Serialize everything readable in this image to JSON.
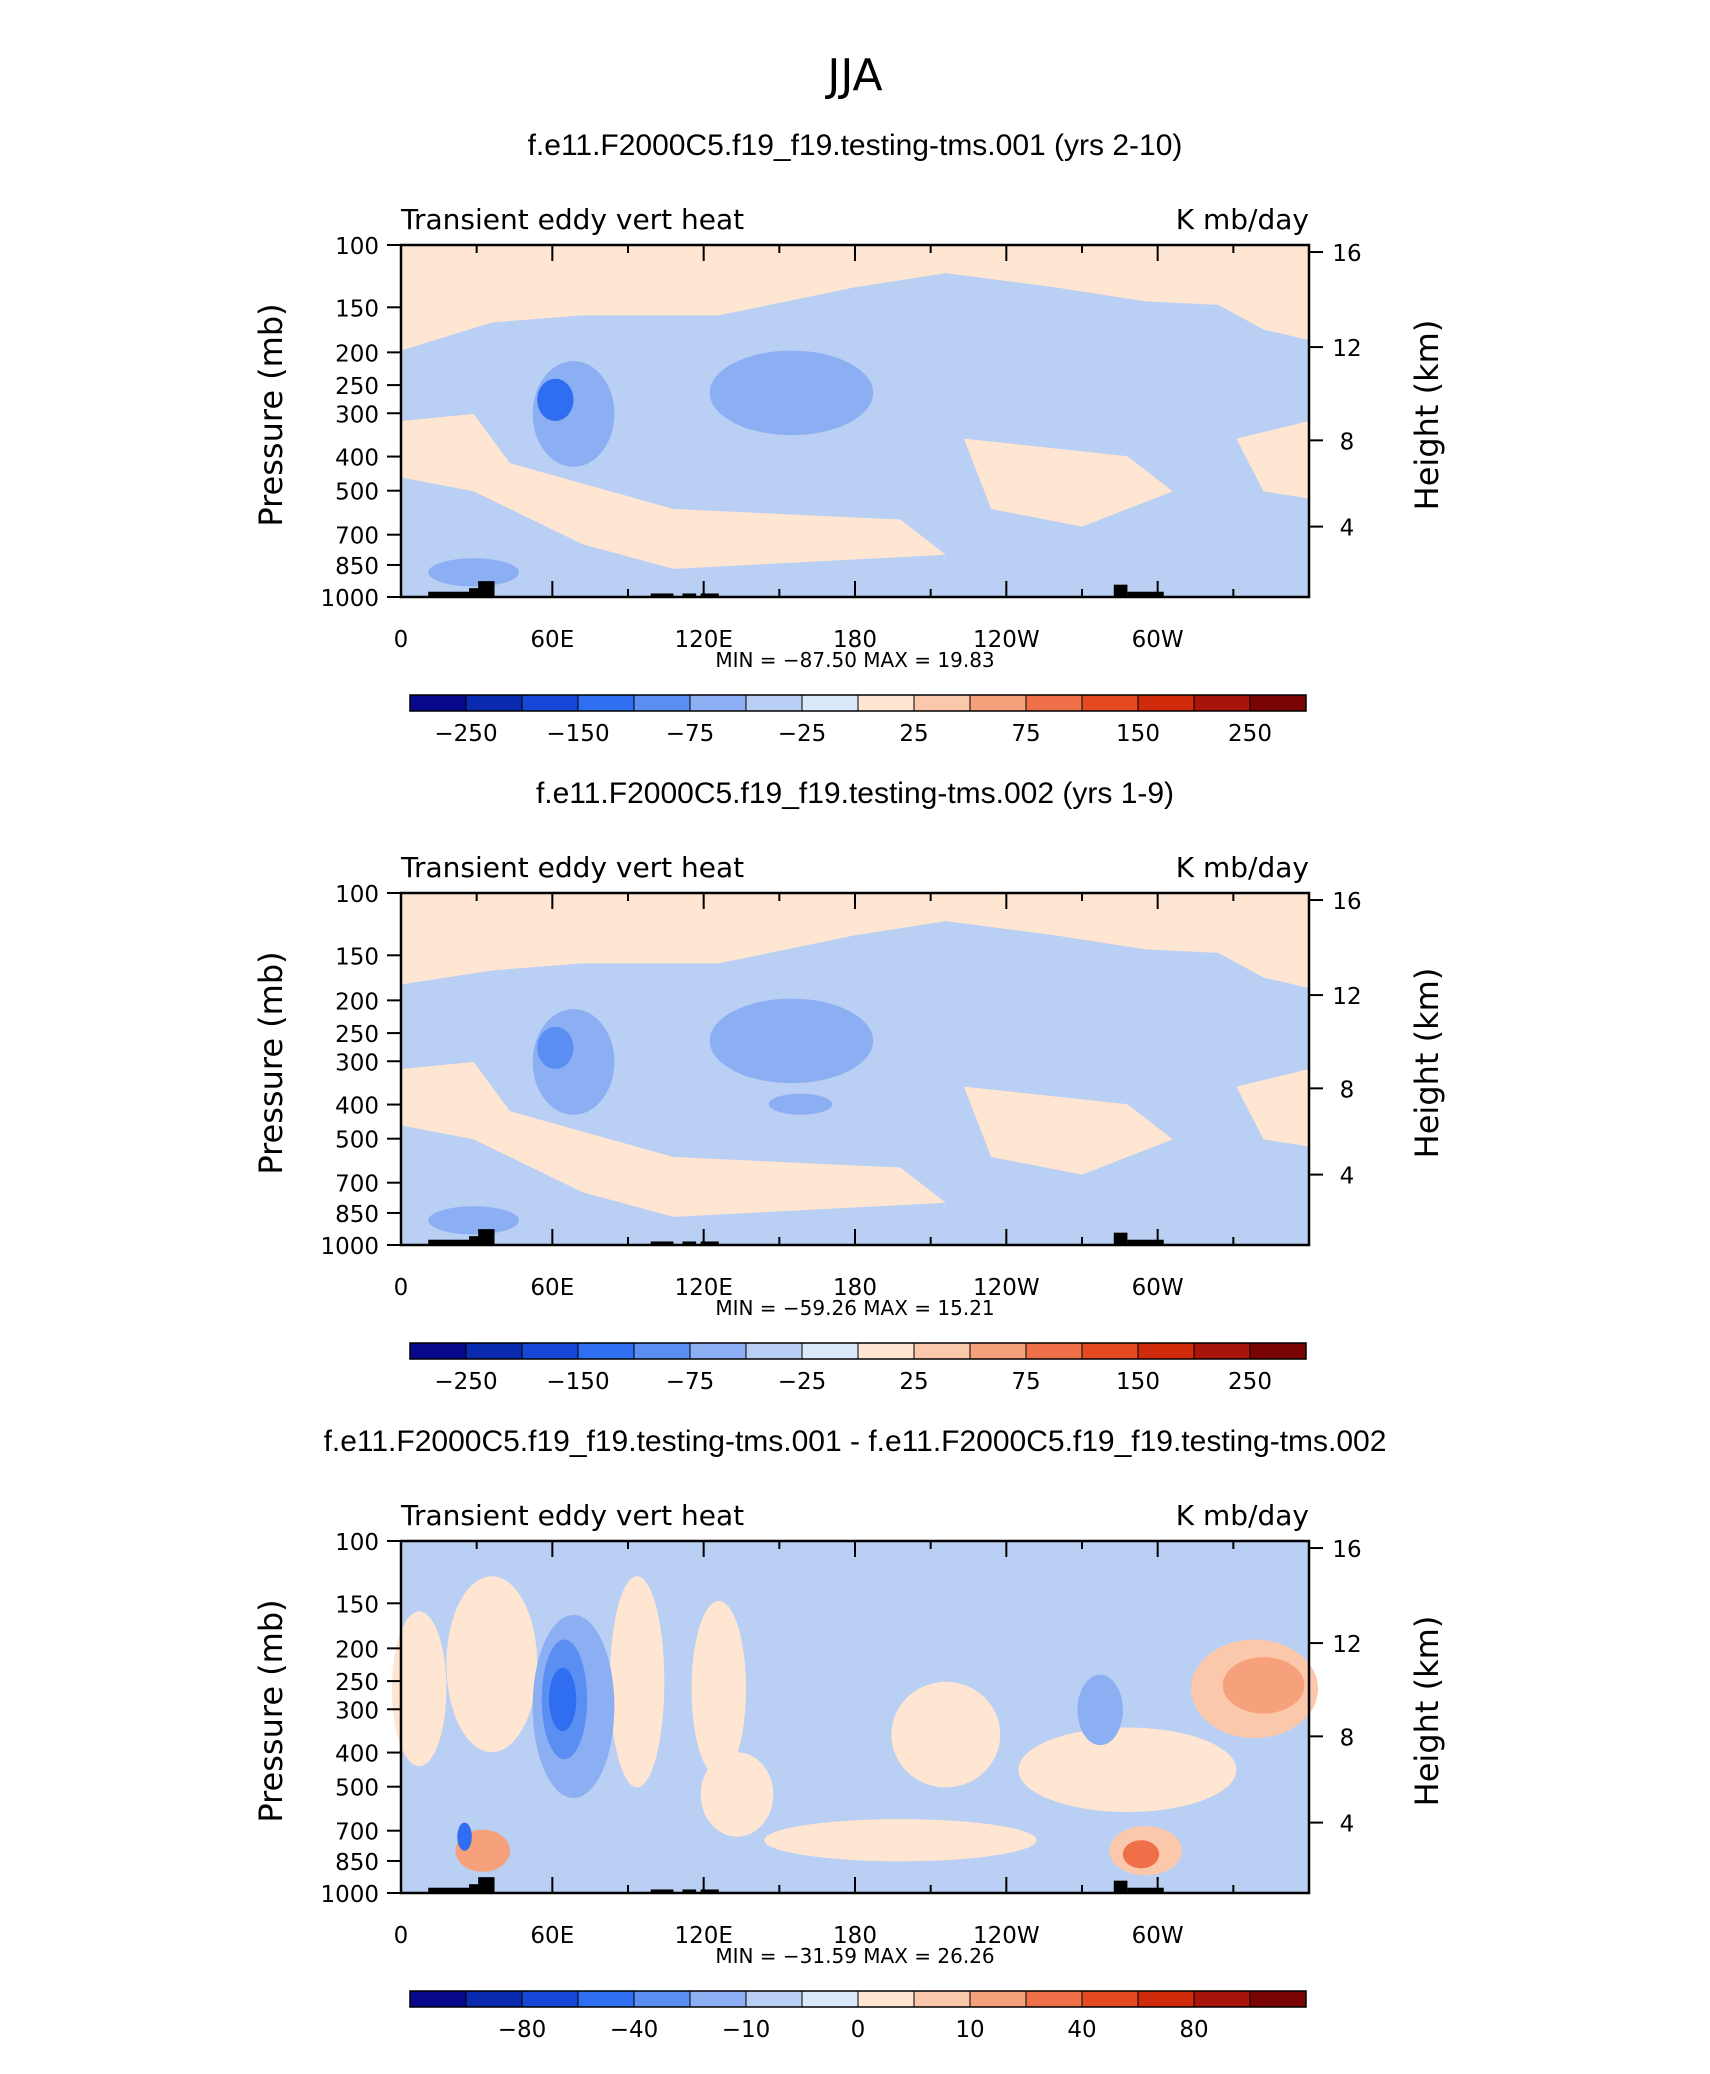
{
  "page_title": "JJA",
  "chart_data": [
    {
      "type": "heatmap",
      "title": "f.e11.F2000C5.f19_f19.testing-tms.001 (yrs 2-10)",
      "subtitle_left": "Transient eddy vert heat",
      "subtitle_right": "K mb/day",
      "ylabel": "Pressure (mb)",
      "ylabel_right": "Height (km)",
      "x_ticks": [
        "0",
        "60E",
        "120E",
        "180",
        "120W",
        "60W"
      ],
      "y_ticks": [
        "100",
        "150",
        "200",
        "250",
        "300",
        "400",
        "500",
        "700",
        "850",
        "1000"
      ],
      "y_ticks_right": [
        "16",
        "12",
        "8",
        "4"
      ],
      "stats": "MIN = −87.50   MAX =   19.83",
      "min": -87.5,
      "max": 19.83,
      "colorbar_labels": [
        "−250",
        "−150",
        "−75",
        "−25",
        "25",
        "75",
        "150",
        "250"
      ],
      "colorbar_levels": [
        -250,
        -200,
        -150,
        -100,
        -75,
        -50,
        -25,
        -10,
        10,
        25,
        50,
        75,
        100,
        150,
        200,
        250
      ],
      "colors": [
        "#08088c",
        "#0a2ab0",
        "#1648d8",
        "#2f6ef0",
        "#5b8ef2",
        "#8caef2",
        "#b9cff3",
        "#d9e8fb",
        "#ffe6d2",
        "#fcc8ac",
        "#f7a07c",
        "#ef7048",
        "#e44a20",
        "#cf2a0a",
        "#a8130a",
        "#7a0404"
      ]
    },
    {
      "type": "heatmap",
      "title": "f.e11.F2000C5.f19_f19.testing-tms.002 (yrs 1-9)",
      "subtitle_left": "Transient eddy vert heat",
      "subtitle_right": "K mb/day",
      "ylabel": "Pressure (mb)",
      "ylabel_right": "Height (km)",
      "x_ticks": [
        "0",
        "60E",
        "120E",
        "180",
        "120W",
        "60W"
      ],
      "y_ticks": [
        "100",
        "150",
        "200",
        "250",
        "300",
        "400",
        "500",
        "700",
        "850",
        "1000"
      ],
      "y_ticks_right": [
        "16",
        "12",
        "8",
        "4"
      ],
      "stats": "MIN = −59.26   MAX =   15.21",
      "min": -59.26,
      "max": 15.21,
      "colorbar_labels": [
        "−250",
        "−150",
        "−75",
        "−25",
        "25",
        "75",
        "150",
        "250"
      ],
      "colorbar_levels": [
        -250,
        -200,
        -150,
        -100,
        -75,
        -50,
        -25,
        -10,
        10,
        25,
        50,
        75,
        100,
        150,
        200,
        250
      ],
      "colors": [
        "#08088c",
        "#0a2ab0",
        "#1648d8",
        "#2f6ef0",
        "#5b8ef2",
        "#8caef2",
        "#b9cff3",
        "#d9e8fb",
        "#ffe6d2",
        "#fcc8ac",
        "#f7a07c",
        "#ef7048",
        "#e44a20",
        "#cf2a0a",
        "#a8130a",
        "#7a0404"
      ]
    },
    {
      "type": "heatmap",
      "title": "f.e11.F2000C5.f19_f19.testing-tms.001 - f.e11.F2000C5.f19_f19.testing-tms.002",
      "subtitle_left": "Transient eddy vert heat",
      "subtitle_right": "K mb/day",
      "ylabel": "Pressure (mb)",
      "ylabel_right": "Height (km)",
      "x_ticks": [
        "0",
        "60E",
        "120E",
        "180",
        "120W",
        "60W"
      ],
      "y_ticks": [
        "100",
        "150",
        "200",
        "250",
        "300",
        "400",
        "500",
        "700",
        "850",
        "1000"
      ],
      "y_ticks_right": [
        "16",
        "12",
        "8",
        "4"
      ],
      "stats": "MIN = −31.59   MAX =   26.26",
      "min": -31.59,
      "max": 26.26,
      "colorbar_labels": [
        "−80",
        "−40",
        "−10",
        "0",
        "10",
        "40",
        "80"
      ],
      "colorbar_levels": [
        -100,
        -80,
        -60,
        -40,
        -20,
        -10,
        -5,
        0,
        5,
        10,
        20,
        40,
        60,
        80,
        100
      ],
      "colors": [
        "#08088c",
        "#0a2ab0",
        "#1648d8",
        "#2f6ef0",
        "#5b8ef2",
        "#8caef2",
        "#b9cff3",
        "#d9e8fb",
        "#ffe6d2",
        "#fcc8ac",
        "#f7a07c",
        "#ef7048",
        "#e44a20",
        "#cf2a0a",
        "#a8130a",
        "#7a0404"
      ]
    }
  ]
}
